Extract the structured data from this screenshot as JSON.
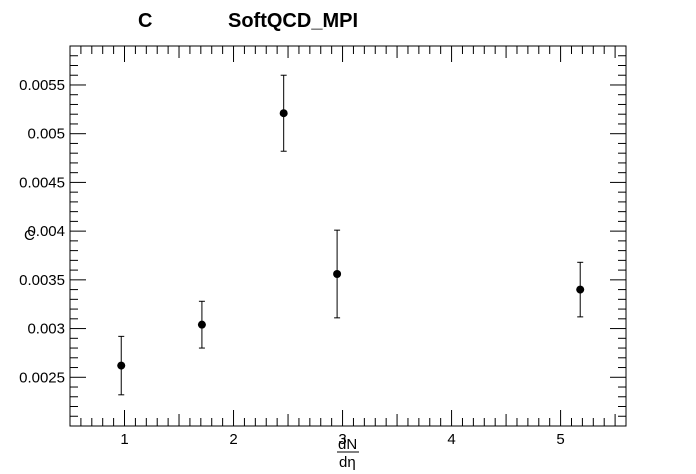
{
  "chart_data": {
    "type": "scatter",
    "title_left": "C",
    "title": "SoftQCD_MPI",
    "xlabel_num": "dN",
    "xlabel_den": "dη",
    "ylabel": "C",
    "xlim": [
      0.5,
      5.6
    ],
    "ylim": [
      0.002,
      0.0059
    ],
    "x_ticks": [
      1,
      2,
      3,
      4,
      5
    ],
    "y_ticks": [
      0.0025,
      0.003,
      0.0035,
      0.004,
      0.0045,
      0.005,
      0.0055
    ],
    "y_tick_labels": [
      "0.0025",
      "0.003",
      "0.0035",
      "0.004",
      "0.0045",
      "0.005",
      "0.0055"
    ],
    "points": [
      {
        "x": 0.97,
        "y": 0.00262,
        "err": 0.0003
      },
      {
        "x": 1.71,
        "y": 0.00304,
        "err": 0.00024
      },
      {
        "x": 2.46,
        "y": 0.00521,
        "err": 0.00039
      },
      {
        "x": 2.95,
        "y": 0.00356,
        "err": 0.00045
      },
      {
        "x": 5.18,
        "y": 0.0034,
        "err": 0.00028
      }
    ],
    "grid": false,
    "legend": "none"
  }
}
